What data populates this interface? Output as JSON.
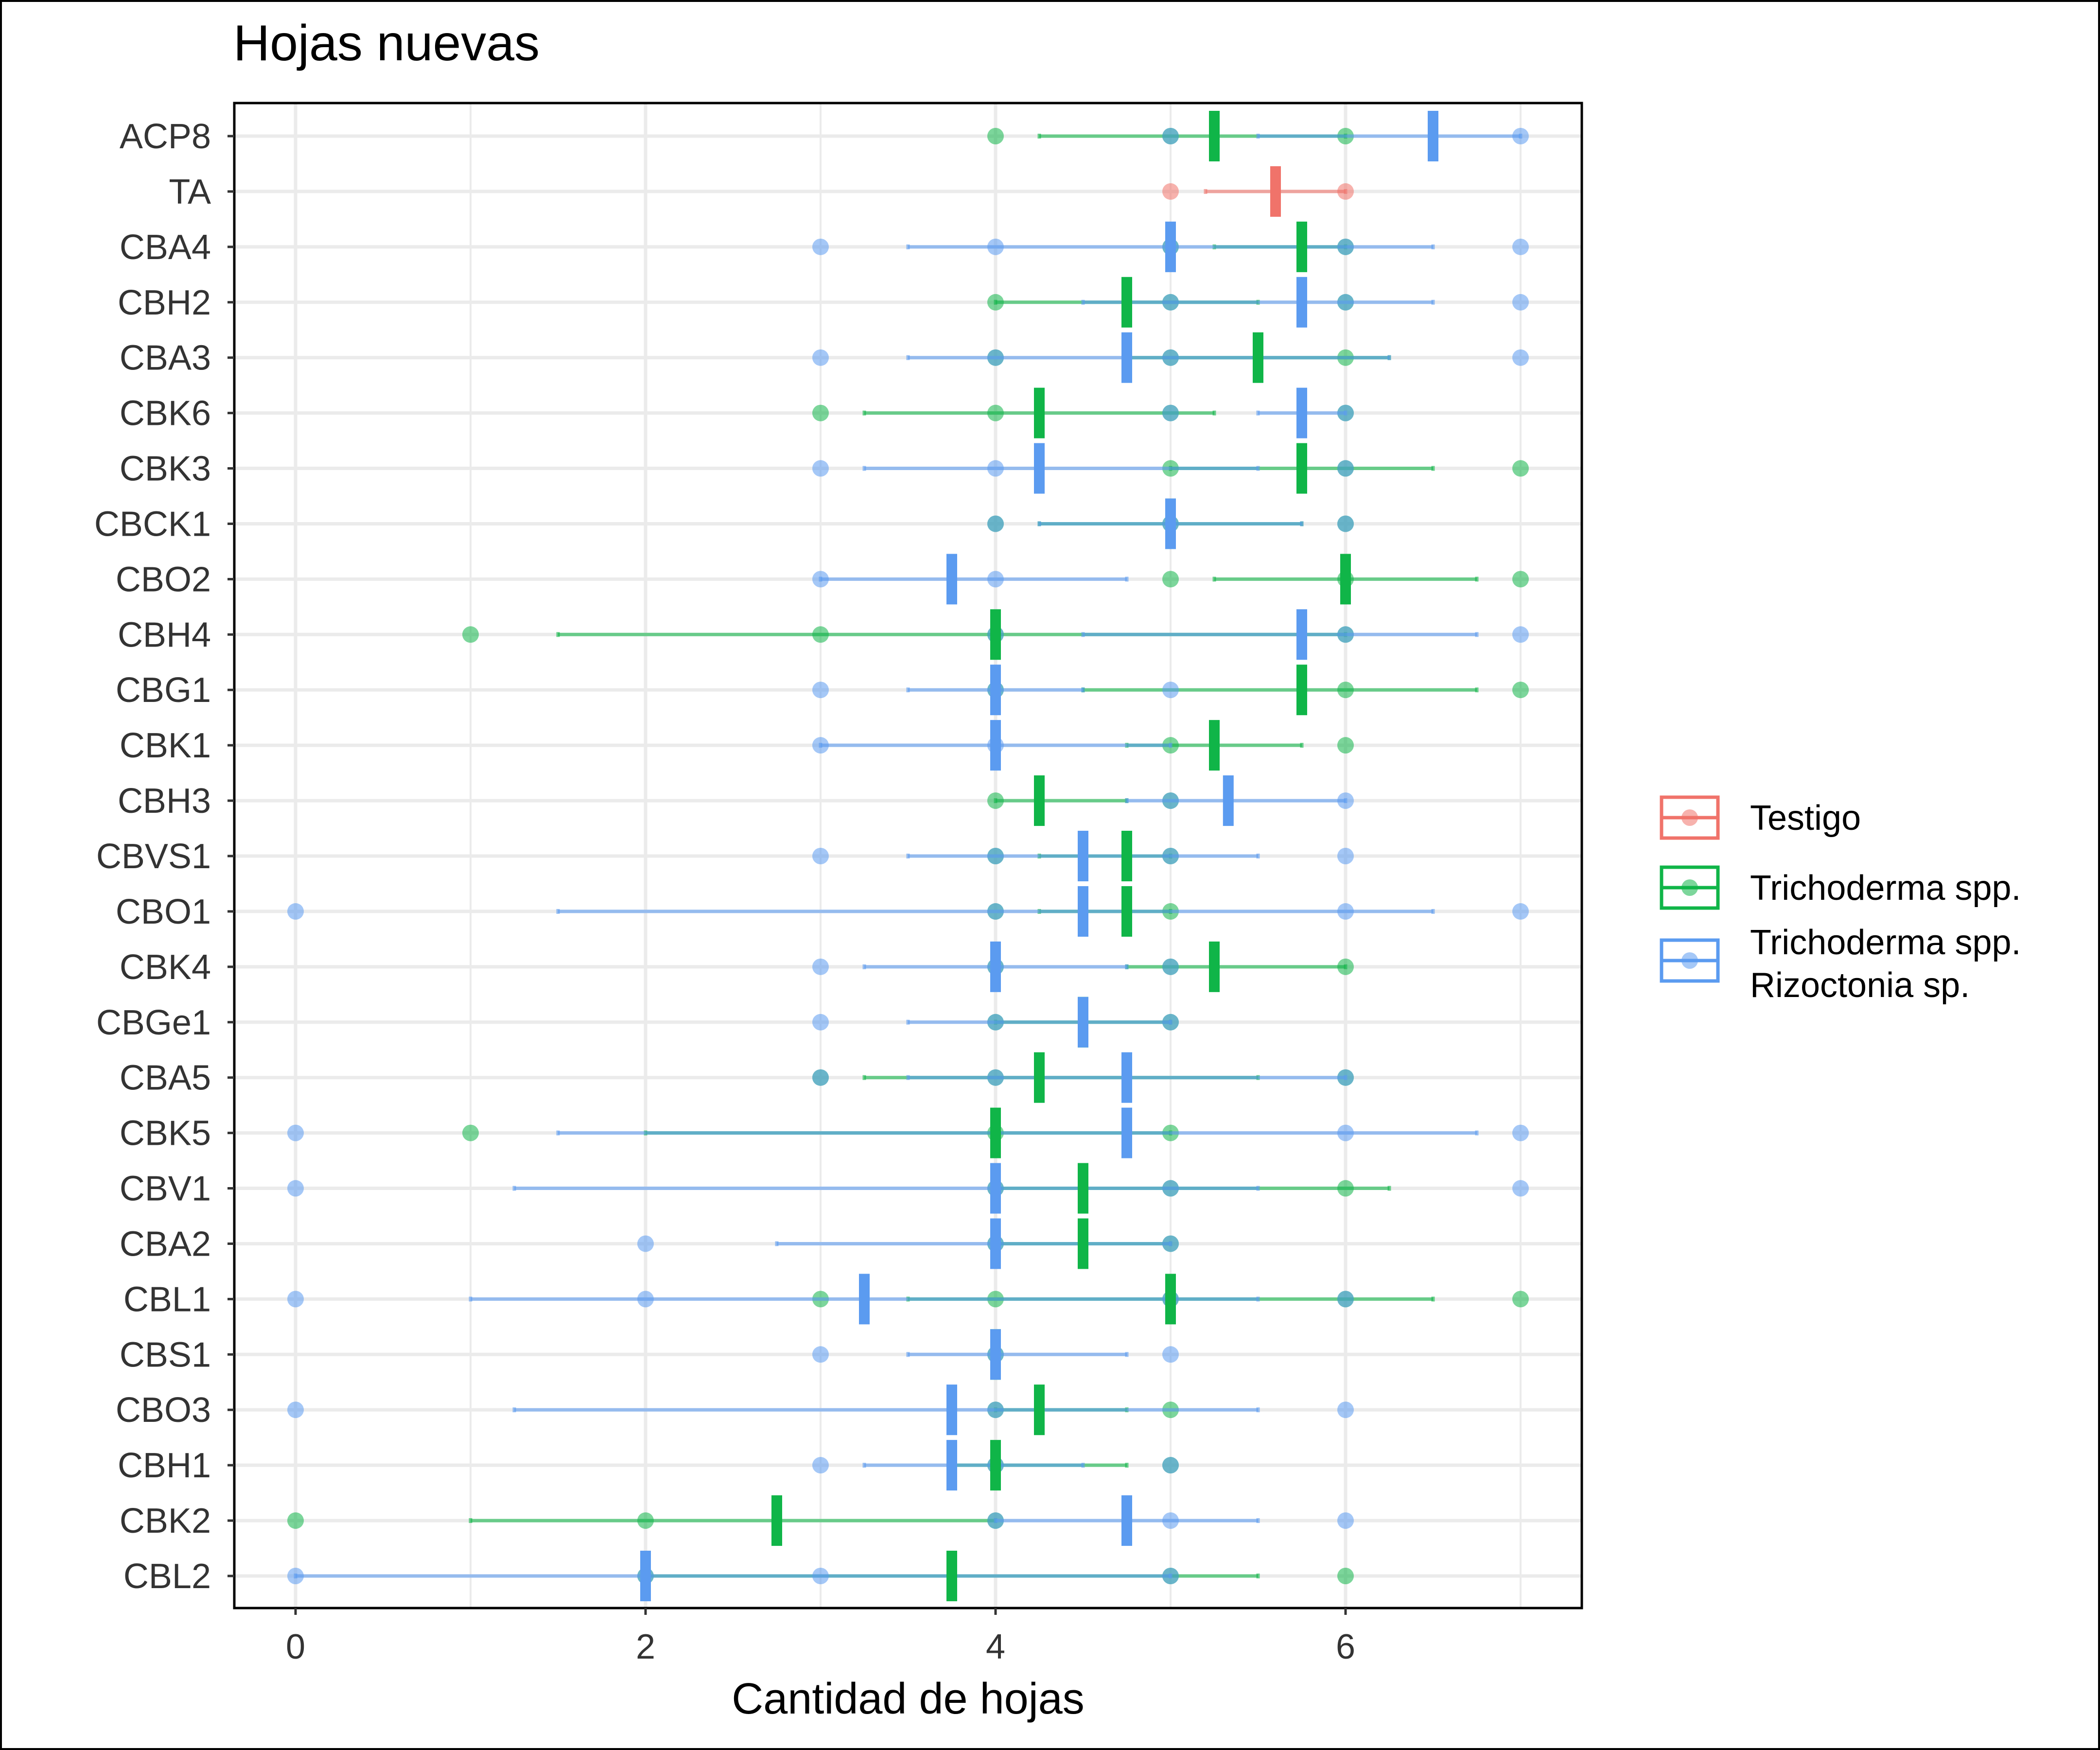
{
  "chart_data": {
    "type": "scatter",
    "title": "Hojas nuevas",
    "xlabel": "Cantidad de hojas",
    "ylabel": "",
    "xlim": [
      -0.35,
      7.35
    ],
    "xticks": [
      0,
      2,
      4,
      6
    ],
    "grid": true,
    "legend_position": "right",
    "categories": [
      "ACP8",
      "TA",
      "CBA4",
      "CBH2",
      "CBA3",
      "CBK6",
      "CBK3",
      "CBCK1",
      "CBO2",
      "CBH4",
      "CBG1",
      "CBK1",
      "CBH3",
      "CBVS1",
      "CBO1",
      "CBK4",
      "CBGe1",
      "CBA5",
      "CBK5",
      "CBV1",
      "CBA2",
      "CBL1",
      "CBS1",
      "CBO3",
      "CBH1",
      "CBK2",
      "CBL2"
    ],
    "series": [
      {
        "name": "Testigo",
        "color": "#F0736A",
        "groups": [
          {
            "category": "TA",
            "points": [
              5,
              6
            ],
            "mean": 5.6,
            "err": [
              5.2,
              6.0
            ]
          }
        ]
      },
      {
        "name": "Trichoderma spp.",
        "color": "#10B548",
        "groups": [
          {
            "category": "ACP8",
            "points": [
              4,
              5,
              6
            ],
            "mean": 5.25,
            "err": [
              4.25,
              6.0
            ]
          },
          {
            "category": "CBA4",
            "points": [
              5,
              6
            ],
            "mean": 5.75,
            "err": [
              5.25,
              6.0
            ]
          },
          {
            "category": "CBH2",
            "points": [
              4,
              5,
              6
            ],
            "mean": 4.75,
            "err": [
              4.0,
              5.5
            ]
          },
          {
            "category": "CBA3",
            "points": [
              4,
              5,
              6
            ],
            "mean": 5.5,
            "err": [
              4.75,
              6.25
            ]
          },
          {
            "category": "CBK6",
            "points": [
              3,
              4,
              5,
              6
            ],
            "mean": 4.25,
            "err": [
              3.25,
              5.25
            ]
          },
          {
            "category": "CBK3",
            "points": [
              5,
              6,
              7
            ],
            "mean": 5.75,
            "err": [
              5.0,
              6.5
            ]
          },
          {
            "category": "CBCK1",
            "points": [
              4,
              5,
              6
            ],
            "mean": 5.0,
            "err": [
              4.25,
              5.75
            ]
          },
          {
            "category": "CBO2",
            "points": [
              5,
              6,
              7
            ],
            "mean": 6.0,
            "err": [
              5.25,
              6.75
            ]
          },
          {
            "category": "CBH4",
            "points": [
              1,
              3,
              4,
              6
            ],
            "mean": 4.0,
            "err": [
              1.5,
              6.0
            ]
          },
          {
            "category": "CBG1",
            "points": [
              4,
              6,
              7
            ],
            "mean": 5.75,
            "err": [
              4.5,
              6.75
            ]
          },
          {
            "category": "CBK1",
            "points": [
              5,
              6
            ],
            "mean": 5.25,
            "err": [
              4.75,
              5.75
            ]
          },
          {
            "category": "CBH3",
            "points": [
              4,
              5
            ],
            "mean": 4.25,
            "err": [
              4.0,
              4.75
            ]
          },
          {
            "category": "CBVS1",
            "points": [
              4,
              5
            ],
            "mean": 4.75,
            "err": [
              4.25,
              5.0
            ]
          },
          {
            "category": "CBO1",
            "points": [
              4,
              5
            ],
            "mean": 4.75,
            "err": [
              4.25,
              5.0
            ]
          },
          {
            "category": "CBK4",
            "points": [
              4,
              5,
              6
            ],
            "mean": 5.25,
            "err": [
              4.75,
              6.0
            ]
          },
          {
            "category": "CBGe1",
            "points": [
              4,
              5
            ],
            "mean": 4.5,
            "err": [
              4.0,
              5.0
            ]
          },
          {
            "category": "CBA5",
            "points": [
              3,
              4,
              6
            ],
            "mean": 4.25,
            "err": [
              3.25,
              5.5
            ]
          },
          {
            "category": "CBK5",
            "points": [
              1,
              4,
              5
            ],
            "mean": 4.0,
            "err": [
              2.0,
              5.0
            ]
          },
          {
            "category": "CBV1",
            "points": [
              4,
              5,
              6
            ],
            "mean": 4.5,
            "err": [
              4.0,
              6.25
            ]
          },
          {
            "category": "CBA2",
            "points": [
              4,
              5
            ],
            "mean": 4.5,
            "err": [
              4.0,
              5.0
            ]
          },
          {
            "category": "CBL1",
            "points": [
              3,
              4,
              5,
              6,
              7
            ],
            "mean": 5.0,
            "err": [
              3.5,
              6.5
            ]
          },
          {
            "category": "CBS1",
            "points": [
              4
            ],
            "mean": 4.0,
            "err": [
              4.0,
              4.0
            ]
          },
          {
            "category": "CBO3",
            "points": [
              4,
              5
            ],
            "mean": 4.25,
            "err": [
              4.0,
              4.75
            ]
          },
          {
            "category": "CBH1",
            "points": [
              4,
              5
            ],
            "mean": 4.0,
            "err": [
              3.75,
              4.75
            ]
          },
          {
            "category": "CBK2",
            "points": [
              0,
              2,
              4
            ],
            "mean": 2.75,
            "err": [
              1.0,
              4.0
            ]
          },
          {
            "category": "CBL2",
            "points": [
              2,
              5,
              6
            ],
            "mean": 3.75,
            "err": [
              2.0,
              5.5
            ]
          }
        ]
      },
      {
        "name": "Trichoderma spp. Rizoctonia sp.",
        "legend_lines": [
          "Trichoderma spp.",
          "Rizoctonia sp."
        ],
        "color": "#5B9BF0",
        "groups": [
          {
            "category": "ACP8",
            "points": [
              5,
              7
            ],
            "mean": 6.5,
            "err": [
              5.5,
              7.0
            ]
          },
          {
            "category": "CBA4",
            "points": [
              3,
              4,
              5,
              6,
              7
            ],
            "mean": 5.0,
            "err": [
              3.5,
              6.5
            ]
          },
          {
            "category": "CBH2",
            "points": [
              5,
              6,
              7
            ],
            "mean": 5.75,
            "err": [
              4.5,
              6.5
            ]
          },
          {
            "category": "CBA3",
            "points": [
              3,
              4,
              5,
              7
            ],
            "mean": 4.75,
            "err": [
              3.5,
              6.25
            ]
          },
          {
            "category": "CBK6",
            "points": [
              5,
              6
            ],
            "mean": 5.75,
            "err": [
              5.5,
              6.0
            ]
          },
          {
            "category": "CBK3",
            "points": [
              3,
              4,
              6
            ],
            "mean": 4.25,
            "err": [
              3.25,
              5.5
            ]
          },
          {
            "category": "CBCK1",
            "points": [
              4,
              5,
              6
            ],
            "mean": 5.0,
            "err": [
              4.25,
              5.75
            ]
          },
          {
            "category": "CBO2",
            "points": [
              3,
              4
            ],
            "mean": 3.75,
            "err": [
              3.0,
              4.75
            ]
          },
          {
            "category": "CBH4",
            "points": [
              4,
              6,
              7
            ],
            "mean": 5.75,
            "err": [
              4.5,
              6.75
            ]
          },
          {
            "category": "CBG1",
            "points": [
              3,
              4,
              5
            ],
            "mean": 4.0,
            "err": [
              3.5,
              4.5
            ]
          },
          {
            "category": "CBK1",
            "points": [
              3,
              4
            ],
            "mean": 4.0,
            "err": [
              3.0,
              5.0
            ]
          },
          {
            "category": "CBH3",
            "points": [
              5,
              6
            ],
            "mean": 5.33,
            "err": [
              4.75,
              6.0
            ]
          },
          {
            "category": "CBVS1",
            "points": [
              3,
              4,
              5,
              6
            ],
            "mean": 4.5,
            "err": [
              3.5,
              5.5
            ]
          },
          {
            "category": "CBO1",
            "points": [
              0,
              4,
              6,
              7
            ],
            "mean": 4.5,
            "err": [
              1.5,
              6.5
            ]
          },
          {
            "category": "CBK4",
            "points": [
              3,
              4,
              5
            ],
            "mean": 4.0,
            "err": [
              3.25,
              4.75
            ]
          },
          {
            "category": "CBGe1",
            "points": [
              3,
              4,
              5
            ],
            "mean": 4.5,
            "err": [
              3.5,
              5.0
            ]
          },
          {
            "category": "CBA5",
            "points": [
              3,
              4,
              6
            ],
            "mean": 4.75,
            "err": [
              3.5,
              6.0
            ]
          },
          {
            "category": "CBK5",
            "points": [
              0,
              6,
              7
            ],
            "mean": 4.75,
            "err": [
              1.5,
              6.75
            ]
          },
          {
            "category": "CBV1",
            "points": [
              0,
              4,
              5,
              7
            ],
            "mean": 4.0,
            "err": [
              1.25,
              5.5
            ]
          },
          {
            "category": "CBA2",
            "points": [
              2,
              4,
              5
            ],
            "mean": 4.0,
            "err": [
              2.75,
              5.0
            ]
          },
          {
            "category": "CBL1",
            "points": [
              0,
              2,
              5,
              6
            ],
            "mean": 3.25,
            "err": [
              1.0,
              5.5
            ]
          },
          {
            "category": "CBS1",
            "points": [
              3,
              4,
              5
            ],
            "mean": 4.0,
            "err": [
              3.5,
              4.75
            ]
          },
          {
            "category": "CBO3",
            "points": [
              0,
              4,
              6
            ],
            "mean": 3.75,
            "err": [
              1.25,
              5.5
            ]
          },
          {
            "category": "CBH1",
            "points": [
              3,
              4,
              5
            ],
            "mean": 3.75,
            "err": [
              3.25,
              4.5
            ]
          },
          {
            "category": "CBK2",
            "points": [
              4,
              5,
              6
            ],
            "mean": 4.75,
            "err": [
              4.0,
              5.5
            ]
          },
          {
            "category": "CBL2",
            "points": [
              0,
              2,
              3,
              5
            ],
            "mean": 2.0,
            "err": [
              0.0,
              5.0
            ]
          }
        ]
      }
    ]
  }
}
